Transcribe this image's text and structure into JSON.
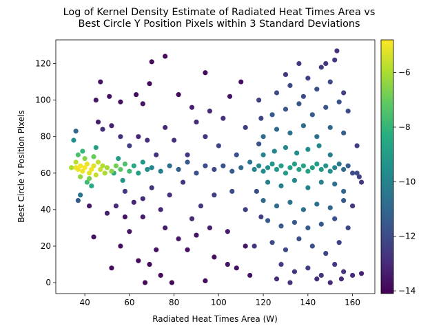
{
  "chart_data": {
    "type": "scatter",
    "title": "Log of Kernel Density Estimate of Radiated Heat Times Area vs\nBest Circle Y Position Pixels within 3 Standard Deviations",
    "xlabel": "Radiated Heat Times Area (W)",
    "ylabel": "Best Circle Y Position Pixels",
    "xlim": [
      27,
      170
    ],
    "ylim": [
      -6,
      133
    ],
    "xticks": [
      40,
      60,
      80,
      100,
      120,
      140,
      160
    ],
    "yticks": [
      0,
      20,
      40,
      60,
      80,
      100,
      120
    ],
    "grid": false,
    "colormap": "viridis",
    "colorbar": {
      "range": [
        -14.1,
        -4.8
      ],
      "ticks": [
        -14,
        -12,
        -10,
        -8,
        -6
      ],
      "tick_labels": [
        "−14",
        "−12",
        "−10",
        "−8",
        "−6"
      ]
    },
    "points": [
      [
        36,
        63,
        -5.0
      ],
      [
        37,
        62,
        -5.0
      ],
      [
        38,
        64,
        -4.9
      ],
      [
        39,
        61,
        -5.0
      ],
      [
        40,
        63,
        -4.9
      ],
      [
        41,
        65,
        -5.1
      ],
      [
        42,
        60,
        -5.2
      ],
      [
        43,
        62,
        -5.0
      ],
      [
        44,
        64,
        -5.2
      ],
      [
        45,
        59,
        -5.6
      ],
      [
        46,
        66,
        -5.7
      ],
      [
        47,
        62,
        -5.6
      ],
      [
        48,
        64,
        -5.9
      ],
      [
        49,
        60,
        -6.0
      ],
      [
        50,
        63,
        -6.1
      ],
      [
        52,
        61,
        -6.5
      ],
      [
        54,
        64,
        -6.8
      ],
      [
        56,
        62,
        -7.2
      ],
      [
        58,
        65,
        -7.5
      ],
      [
        60,
        61,
        -7.8
      ],
      [
        36,
        66,
        -5.8
      ],
      [
        38,
        58,
        -6.3
      ],
      [
        40,
        68,
        -6.5
      ],
      [
        42,
        57,
        -6.8
      ],
      [
        44,
        69,
        -7.0
      ],
      [
        37,
        70,
        -7.5
      ],
      [
        39,
        72,
        -8.0
      ],
      [
        41,
        55,
        -7.8
      ],
      [
        43,
        53,
        -8.5
      ],
      [
        45,
        74,
        -8.8
      ],
      [
        35,
        78,
        -9.5
      ],
      [
        36,
        83,
        -11.0
      ],
      [
        38,
        48,
        -10.5
      ],
      [
        37,
        45,
        -11.5
      ],
      [
        34,
        63,
        -6.0
      ],
      [
        62,
        64,
        -8.6
      ],
      [
        64,
        60,
        -8.9
      ],
      [
        66,
        66,
        -9.3
      ],
      [
        68,
        62,
        -9.6
      ],
      [
        70,
        63,
        -9.9
      ],
      [
        74,
        61,
        -10.3
      ],
      [
        78,
        64,
        -10.8
      ],
      [
        82,
        62,
        -11.2
      ],
      [
        86,
        66,
        -11.5
      ],
      [
        90,
        60,
        -11.8
      ],
      [
        94,
        64,
        -12.0
      ],
      [
        98,
        62,
        -12.1
      ],
      [
        102,
        64,
        -11.8
      ],
      [
        106,
        61,
        -11.4
      ],
      [
        110,
        63,
        -10.9
      ],
      [
        114,
        66,
        -10.5
      ],
      [
        116,
        62,
        -10.1
      ],
      [
        118,
        64,
        -9.8
      ],
      [
        120,
        61,
        -9.6
      ],
      [
        122,
        63,
        -9.4
      ],
      [
        124,
        65,
        -9.3
      ],
      [
        126,
        62,
        -9.1
      ],
      [
        128,
        64,
        -9.0
      ],
      [
        130,
        60,
        -9.0
      ],
      [
        132,
        63,
        -8.9
      ],
      [
        134,
        65,
        -8.9
      ],
      [
        136,
        62,
        -8.8
      ],
      [
        138,
        64,
        -8.8
      ],
      [
        140,
        61,
        -8.9
      ],
      [
        142,
        63,
        -8.9
      ],
      [
        144,
        65,
        -9.0
      ],
      [
        146,
        62,
        -9.1
      ],
      [
        148,
        64,
        -9.3
      ],
      [
        150,
        61,
        -9.6
      ],
      [
        152,
        63,
        -10.0
      ],
      [
        154,
        65,
        -10.4
      ],
      [
        156,
        62,
        -10.9
      ],
      [
        158,
        64,
        -11.3
      ],
      [
        162,
        60,
        -12.0
      ],
      [
        163,
        58,
        -12.3
      ],
      [
        120,
        70,
        -10.0
      ],
      [
        125,
        72,
        -9.9
      ],
      [
        130,
        74,
        -9.8
      ],
      [
        135,
        71,
        -9.6
      ],
      [
        140,
        73,
        -9.6
      ],
      [
        145,
        75,
        -9.8
      ],
      [
        150,
        70,
        -10.2
      ],
      [
        122,
        55,
        -10.2
      ],
      [
        128,
        53,
        -10.1
      ],
      [
        134,
        56,
        -9.8
      ],
      [
        140,
        52,
        -9.9
      ],
      [
        146,
        55,
        -10.1
      ],
      [
        152,
        54,
        -10.6
      ],
      [
        156,
        50,
        -11.0
      ],
      [
        120,
        80,
        -10.8
      ],
      [
        126,
        84,
        -10.9
      ],
      [
        132,
        82,
        -10.7
      ],
      [
        138,
        86,
        -10.8
      ],
      [
        144,
        80,
        -10.6
      ],
      [
        150,
        85,
        -11.0
      ],
      [
        156,
        82,
        -11.4
      ],
      [
        120,
        45,
        -10.9
      ],
      [
        126,
        42,
        -10.8
      ],
      [
        132,
        44,
        -10.6
      ],
      [
        138,
        40,
        -10.6
      ],
      [
        144,
        43,
        -10.7
      ],
      [
        150,
        41,
        -11.0
      ],
      [
        156,
        45,
        -11.5
      ],
      [
        124,
        92,
        -11.5
      ],
      [
        130,
        95,
        -11.6
      ],
      [
        136,
        98,
        -11.6
      ],
      [
        142,
        92,
        -11.4
      ],
      [
        148,
        96,
        -11.6
      ],
      [
        154,
        99,
        -11.8
      ],
      [
        158,
        94,
        -12.0
      ],
      [
        122,
        34,
        -11.5
      ],
      [
        128,
        31,
        -11.6
      ],
      [
        134,
        33,
        -11.4
      ],
      [
        140,
        30,
        -11.4
      ],
      [
        146,
        32,
        -11.5
      ],
      [
        152,
        35,
        -11.8
      ],
      [
        158,
        30,
        -12.1
      ],
      [
        126,
        104,
        -12.0
      ],
      [
        132,
        108,
        -12.1
      ],
      [
        138,
        102,
        -12.0
      ],
      [
        144,
        106,
        -11.9
      ],
      [
        150,
        110,
        -12.1
      ],
      [
        156,
        104,
        -12.4
      ],
      [
        124,
        22,
        -12.0
      ],
      [
        130,
        18,
        -12.1
      ],
      [
        136,
        24,
        -11.9
      ],
      [
        142,
        20,
        -11.9
      ],
      [
        148,
        16,
        -12.2
      ],
      [
        154,
        22,
        -12.3
      ],
      [
        130,
        114,
        -12.5
      ],
      [
        140,
        112,
        -12.3
      ],
      [
        146,
        118,
        -12.4
      ],
      [
        152,
        122,
        -12.6
      ],
      [
        153,
        127,
        -12.8
      ],
      [
        148,
        120,
        -12.7
      ],
      [
        136,
        120,
        -12.6
      ],
      [
        128,
        10,
        -12.5
      ],
      [
        134,
        6,
        -12.6
      ],
      [
        140,
        8,
        -12.4
      ],
      [
        146,
        4,
        -12.7
      ],
      [
        152,
        10,
        -12.6
      ],
      [
        156,
        6,
        -12.8
      ],
      [
        160,
        4,
        -13.0
      ],
      [
        132,
        0,
        -12.8
      ],
      [
        144,
        2,
        -12.9
      ],
      [
        150,
        0,
        -13.0
      ],
      [
        155,
        2,
        -12.9
      ],
      [
        126,
        2,
        -13.0
      ],
      [
        164,
        5,
        -13.2
      ],
      [
        160,
        60,
        -12.0
      ],
      [
        162,
        75,
        -12.4
      ],
      [
        160,
        42,
        -12.5
      ],
      [
        164,
        55,
        -12.6
      ],
      [
        118,
        100,
        -12.4
      ],
      [
        116,
        20,
        -12.6
      ],
      [
        112,
        40,
        -12.3
      ],
      [
        112,
        85,
        -12.3
      ],
      [
        108,
        70,
        -11.8
      ],
      [
        106,
        50,
        -12.0
      ],
      [
        100,
        75,
        -12.2
      ],
      [
        98,
        48,
        -12.4
      ],
      [
        94,
        80,
        -12.6
      ],
      [
        92,
        42,
        -12.7
      ],
      [
        90,
        88,
        -12.9
      ],
      [
        88,
        35,
        -13.0
      ],
      [
        86,
        70,
        -12.6
      ],
      [
        84,
        55,
        -12.7
      ],
      [
        80,
        78,
        -12.8
      ],
      [
        78,
        48,
        -12.8
      ],
      [
        76,
        85,
        -13.0
      ],
      [
        74,
        40,
        -13.0
      ],
      [
        72,
        70,
        -12.8
      ],
      [
        70,
        52,
        -12.7
      ],
      [
        68,
        78,
        -12.9
      ],
      [
        66,
        46,
        -13.0
      ],
      [
        64,
        80,
        -13.1
      ],
      [
        62,
        44,
        -13.1
      ],
      [
        60,
        75,
        -12.4
      ],
      [
        58,
        50,
        -12.5
      ],
      [
        56,
        80,
        -12.8
      ],
      [
        54,
        42,
        -13.0
      ],
      [
        52,
        86,
        -13.2
      ],
      [
        50,
        38,
        -13.2
      ],
      [
        48,
        84,
        -12.9
      ],
      [
        46,
        88,
        -13.3
      ],
      [
        47,
        110,
        -13.6
      ],
      [
        45,
        100,
        -13.5
      ],
      [
        51,
        102,
        -13.6
      ],
      [
        56,
        99,
        -13.7
      ],
      [
        66,
        98,
        -13.6
      ],
      [
        69,
        109,
        -13.8
      ],
      [
        70,
        121,
        -13.9
      ],
      [
        76,
        124,
        -13.9
      ],
      [
        63,
        103,
        -13.7
      ],
      [
        82,
        103,
        -13.8
      ],
      [
        94,
        115,
        -13.8
      ],
      [
        110,
        110,
        -13.7
      ],
      [
        105,
        102,
        -13.6
      ],
      [
        44,
        25,
        -13.6
      ],
      [
        42,
        42,
        -13.5
      ],
      [
        52,
        8,
        -13.8
      ],
      [
        56,
        20,
        -13.7
      ],
      [
        60,
        28,
        -13.6
      ],
      [
        58,
        36,
        -13.6
      ],
      [
        64,
        12,
        -13.8
      ],
      [
        67,
        0,
        -13.9
      ],
      [
        69,
        10,
        -13.8
      ],
      [
        72,
        18,
        -13.7
      ],
      [
        74,
        4,
        -13.9
      ],
      [
        79,
        0,
        -14.0
      ],
      [
        86,
        18,
        -13.7
      ],
      [
        90,
        26,
        -13.6
      ],
      [
        94,
        1,
        -13.8
      ],
      [
        98,
        14,
        -13.7
      ],
      [
        104,
        10,
        -13.6
      ],
      [
        108,
        8,
        -13.6
      ],
      [
        112,
        20,
        -13.5
      ],
      [
        114,
        4,
        -13.6
      ],
      [
        104,
        28,
        -13.4
      ],
      [
        96,
        30,
        -13.3
      ],
      [
        82,
        24,
        -13.5
      ],
      [
        76,
        30,
        -13.4
      ],
      [
        66,
        36,
        -13.4
      ],
      [
        53,
        60,
        -8.5
      ],
      [
        55,
        68,
        -9.0
      ],
      [
        57,
        56,
        -9.2
      ],
      [
        102,
        90,
        -12.8
      ],
      [
        96,
        94,
        -13.0
      ],
      [
        88,
        96,
        -13.2
      ],
      [
        118,
        76,
        -11.8
      ],
      [
        117,
        50,
        -11.9
      ],
      [
        119,
        90,
        -12.2
      ],
      [
        119,
        36,
        -12.3
      ]
    ]
  }
}
